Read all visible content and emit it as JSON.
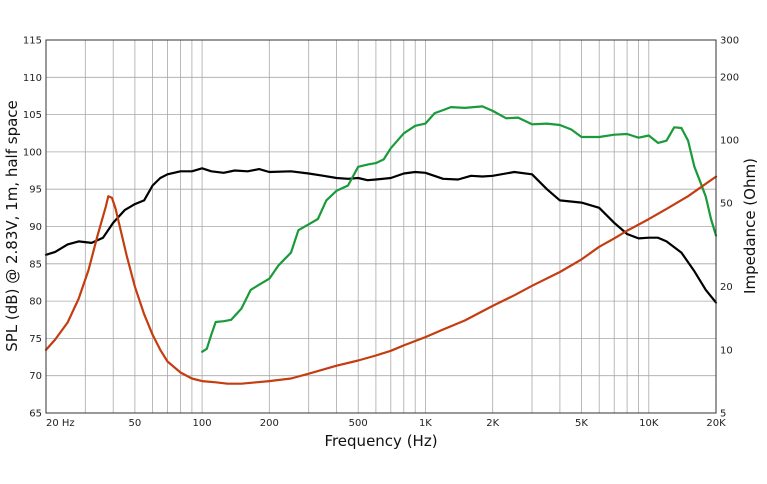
{
  "chart_data": {
    "type": "line",
    "title": "",
    "xlabel": "Frequency (Hz)",
    "ylabel": "SPL (dB) @ 2.83V, 1m, half space",
    "y2label": "Impedance (Ohm)",
    "x_scale": "log",
    "y2_scale": "log",
    "xlim": [
      20,
      20000
    ],
    "ylim": [
      65,
      115
    ],
    "y2lim": [
      5,
      300
    ],
    "grid": true,
    "legend": "none",
    "x_ticks": [
      {
        "value": 20,
        "label": "20 Hz"
      },
      {
        "value": 50,
        "label": "50"
      },
      {
        "value": 100,
        "label": "100"
      },
      {
        "value": 200,
        "label": "200"
      },
      {
        "value": 500,
        "label": "500"
      },
      {
        "value": 1000,
        "label": "1K"
      },
      {
        "value": 2000,
        "label": "2K"
      },
      {
        "value": 5000,
        "label": "5K"
      },
      {
        "value": 10000,
        "label": "10K"
      },
      {
        "value": 20000,
        "label": "20K"
      }
    ],
    "y_ticks": [
      "65",
      "70",
      "75",
      "80",
      "85",
      "90",
      "95",
      "100",
      "105",
      "110",
      "115"
    ],
    "y2_ticks": [
      {
        "value": 5,
        "label": "5"
      },
      {
        "value": 10,
        "label": "10"
      },
      {
        "value": 20,
        "label": "20"
      },
      {
        "value": 50,
        "label": "50"
      },
      {
        "value": 100,
        "label": "100"
      },
      {
        "value": 200,
        "label": "200"
      },
      {
        "value": 300,
        "label": "300"
      }
    ],
    "series": [
      {
        "color": "#000000",
        "axis": "left",
        "points": [
          [
            20,
            86.2
          ],
          [
            22,
            86.6
          ],
          [
            25,
            87.6
          ],
          [
            28,
            88
          ],
          [
            32,
            87.8
          ],
          [
            36,
            88.5
          ],
          [
            40,
            90.5
          ],
          [
            45,
            92.2
          ],
          [
            50,
            93
          ],
          [
            55,
            93.5
          ],
          [
            60,
            95.5
          ],
          [
            65,
            96.5
          ],
          [
            70,
            97
          ],
          [
            80,
            97.4
          ],
          [
            90,
            97.4
          ],
          [
            100,
            97.8
          ],
          [
            110,
            97.4
          ],
          [
            125,
            97.2
          ],
          [
            140,
            97.5
          ],
          [
            160,
            97.4
          ],
          [
            180,
            97.7
          ],
          [
            200,
            97.3
          ],
          [
            250,
            97.4
          ],
          [
            300,
            97.1
          ],
          [
            350,
            96.8
          ],
          [
            400,
            96.5
          ],
          [
            450,
            96.4
          ],
          [
            500,
            96.5
          ],
          [
            550,
            96.2
          ],
          [
            600,
            96.3
          ],
          [
            700,
            96.5
          ],
          [
            800,
            97.1
          ],
          [
            900,
            97.3
          ],
          [
            1000,
            97.2
          ],
          [
            1200,
            96.4
          ],
          [
            1400,
            96.3
          ],
          [
            1600,
            96.8
          ],
          [
            1800,
            96.7
          ],
          [
            2000,
            96.8
          ],
          [
            2500,
            97.3
          ],
          [
            3000,
            97
          ],
          [
            3500,
            95
          ],
          [
            4000,
            93.5
          ],
          [
            5000,
            93.2
          ],
          [
            6000,
            92.5
          ],
          [
            7000,
            90.5
          ],
          [
            8000,
            89
          ],
          [
            9000,
            88.4
          ],
          [
            10000,
            88.5
          ],
          [
            11000,
            88.5
          ],
          [
            12000,
            88
          ],
          [
            14000,
            86.5
          ],
          [
            16000,
            84
          ],
          [
            18000,
            81.5
          ],
          [
            20000,
            79.8
          ]
        ]
      },
      {
        "color": "#1a9a3a",
        "axis": "left",
        "points": [
          [
            100,
            73.2
          ],
          [
            105,
            73.6
          ],
          [
            110,
            75.5
          ],
          [
            115,
            77.2
          ],
          [
            125,
            77.3
          ],
          [
            135,
            77.5
          ],
          [
            150,
            79
          ],
          [
            165,
            81.5
          ],
          [
            180,
            82.2
          ],
          [
            200,
            83
          ],
          [
            220,
            84.8
          ],
          [
            250,
            86.5
          ],
          [
            270,
            89.5
          ],
          [
            300,
            90.3
          ],
          [
            330,
            91
          ],
          [
            360,
            93.5
          ],
          [
            400,
            94.8
          ],
          [
            450,
            95.5
          ],
          [
            500,
            98
          ],
          [
            550,
            98.3
          ],
          [
            600,
            98.5
          ],
          [
            650,
            99
          ],
          [
            700,
            100.5
          ],
          [
            800,
            102.5
          ],
          [
            900,
            103.5
          ],
          [
            1000,
            103.8
          ],
          [
            1100,
            105.2
          ],
          [
            1200,
            105.6
          ],
          [
            1300,
            106
          ],
          [
            1500,
            105.9
          ],
          [
            1800,
            106.1
          ],
          [
            2000,
            105.5
          ],
          [
            2300,
            104.5
          ],
          [
            2600,
            104.6
          ],
          [
            3000,
            103.7
          ],
          [
            3500,
            103.8
          ],
          [
            4000,
            103.6
          ],
          [
            4500,
            103
          ],
          [
            5000,
            102
          ],
          [
            6000,
            102
          ],
          [
            7000,
            102.3
          ],
          [
            8000,
            102.4
          ],
          [
            9000,
            101.9
          ],
          [
            10000,
            102.2
          ],
          [
            11000,
            101.2
          ],
          [
            12000,
            101.5
          ],
          [
            13000,
            103.3
          ],
          [
            14000,
            103.2
          ],
          [
            15000,
            101.5
          ],
          [
            16000,
            98
          ],
          [
            17000,
            96
          ],
          [
            18000,
            94
          ],
          [
            19000,
            91
          ],
          [
            20000,
            88.8
          ]
        ]
      },
      {
        "color": "#c43d10",
        "axis": "right",
        "points": [
          [
            20,
            10
          ],
          [
            22,
            11.2
          ],
          [
            25,
            13.5
          ],
          [
            28,
            17.5
          ],
          [
            31,
            24
          ],
          [
            34,
            35
          ],
          [
            37,
            48
          ],
          [
            38,
            54
          ],
          [
            39.5,
            53
          ],
          [
            41,
            47
          ],
          [
            43,
            38
          ],
          [
            46,
            28
          ],
          [
            50,
            20
          ],
          [
            55,
            14.8
          ],
          [
            60,
            11.8
          ],
          [
            65,
            10
          ],
          [
            70,
            8.8
          ],
          [
            80,
            7.8
          ],
          [
            90,
            7.3
          ],
          [
            100,
            7.1
          ],
          [
            115,
            7.0
          ],
          [
            130,
            6.9
          ],
          [
            150,
            6.9
          ],
          [
            175,
            7.0
          ],
          [
            200,
            7.1
          ],
          [
            250,
            7.3
          ],
          [
            300,
            7.7
          ],
          [
            400,
            8.4
          ],
          [
            500,
            8.9
          ],
          [
            600,
            9.4
          ],
          [
            700,
            9.9
          ],
          [
            800,
            10.5
          ],
          [
            1000,
            11.5
          ],
          [
            1200,
            12.5
          ],
          [
            1500,
            13.8
          ],
          [
            2000,
            16.2
          ],
          [
            2500,
            18.2
          ],
          [
            3000,
            20.2
          ],
          [
            4000,
            23.5
          ],
          [
            5000,
            27
          ],
          [
            6000,
            31
          ],
          [
            7000,
            34
          ],
          [
            8000,
            37
          ],
          [
            10000,
            42
          ],
          [
            12000,
            47
          ],
          [
            15000,
            54
          ],
          [
            20000,
            67
          ]
        ]
      }
    ]
  }
}
